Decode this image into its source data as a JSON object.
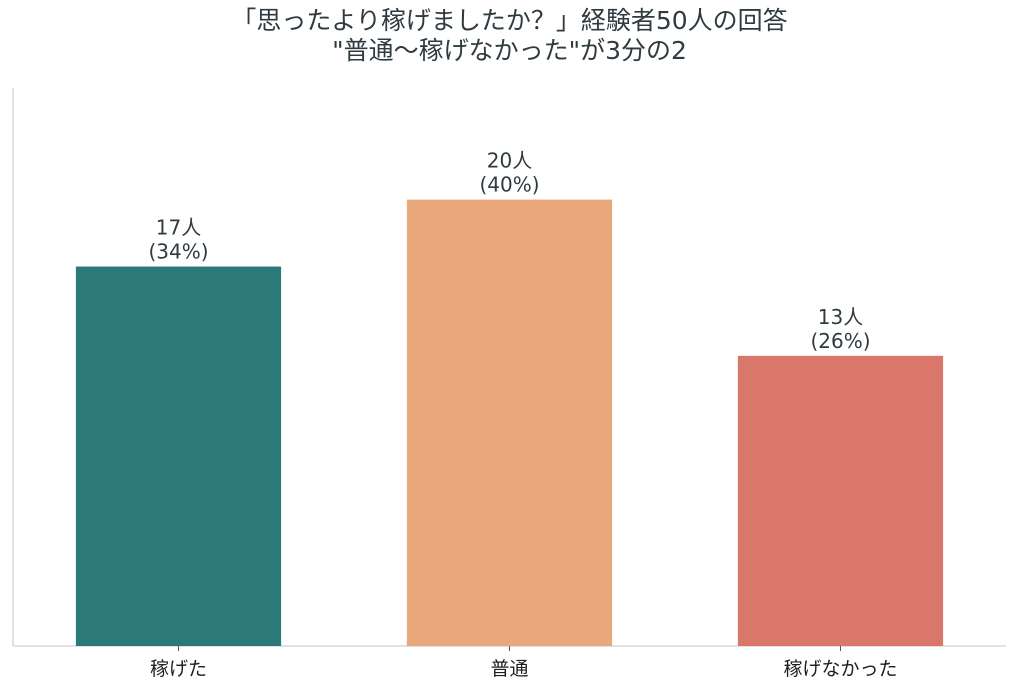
{
  "chart_data": {
    "type": "bar",
    "title": "「思ったより稼げましたか？」経験者50人の回答",
    "subtitle": "\"普通〜稼げなかった\"が3分の2",
    "categories": [
      "稼げた",
      "普通",
      "稼げなかった"
    ],
    "values": [
      17,
      20,
      13
    ],
    "value_labels": [
      "17人",
      "20人",
      "13人"
    ],
    "percent_labels": [
      "(34%)",
      "(40%)",
      "(26%)"
    ],
    "colors": [
      "#2c7979",
      "#e8a87c",
      "#d9776b"
    ],
    "xlabel": "",
    "ylabel": "",
    "ylim": [
      0,
      25
    ],
    "grid": false
  }
}
